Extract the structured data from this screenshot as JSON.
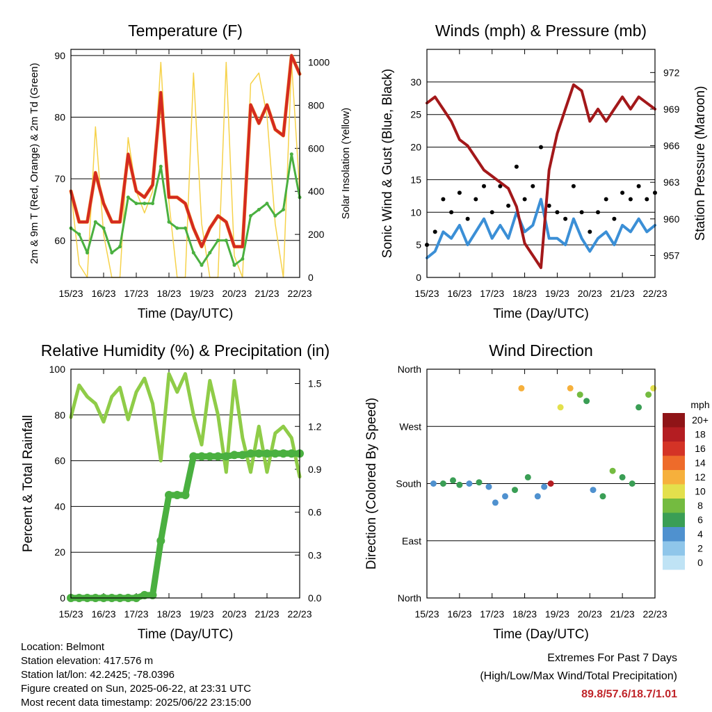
{
  "colors": {
    "temp": "#d42a20",
    "temp9": "#f39a2d",
    "dew": "#4ab040",
    "solar": "#f6d24a",
    "wind": "#3b8fd6",
    "gust": "#000000",
    "pressure": "#a3181a",
    "rh": "#8fcc48",
    "precip": "#4ab040",
    "extremes": "#c0252a"
  },
  "time_ticks": [
    "15/23",
    "16/23",
    "17/23",
    "18/23",
    "19/23",
    "20/23",
    "21/23",
    "22/23"
  ],
  "chart_data": [
    {
      "type": "line",
      "title": "Temperature (F)",
      "xlabel": "Time (Day/UTC)",
      "ylabel": "2m & 9m T (Red, Orange) & 2m Td (Green)",
      "y2label": "Solar Insolation (Yellow)",
      "ylim": [
        54,
        91
      ],
      "yticks": [
        60,
        70,
        80,
        90
      ],
      "y2lim": [
        0,
        1060
      ],
      "y2ticks": [
        0,
        200,
        400,
        600,
        800,
        1000
      ],
      "x": [
        0,
        0.25,
        0.5,
        0.75,
        1,
        1.25,
        1.5,
        1.75,
        2,
        2.25,
        2.5,
        2.75,
        3,
        3.25,
        3.5,
        3.75,
        4,
        4.25,
        4.5,
        4.75,
        5,
        5.25,
        5.5,
        5.75,
        6,
        6.25,
        6.5,
        6.75,
        7
      ],
      "series": [
        {
          "name": "2m T",
          "axis": "left",
          "values": [
            68,
            63,
            63,
            71,
            66,
            63,
            63,
            74,
            68,
            67,
            69,
            84,
            67,
            67,
            66,
            62,
            59,
            62,
            64,
            63,
            59,
            59,
            82,
            79,
            82,
            78,
            77,
            90,
            87
          ]
        },
        {
          "name": "2m Td",
          "axis": "left",
          "values": [
            62,
            61,
            58,
            63,
            62,
            58,
            59,
            67,
            66,
            66,
            66,
            72,
            63,
            62,
            62,
            58,
            56,
            58,
            60,
            60,
            56,
            57,
            64,
            65,
            66,
            64,
            65,
            74,
            67
          ]
        },
        {
          "name": "Solar",
          "axis": "right",
          "values": [
            400,
            60,
            0,
            700,
            200,
            0,
            0,
            650,
            400,
            300,
            400,
            1000,
            350,
            0,
            0,
            950,
            250,
            0,
            0,
            1000,
            100,
            0,
            900,
            950,
            750,
            250,
            0,
            1000,
            400
          ]
        }
      ]
    },
    {
      "type": "scatter",
      "title": "Winds (mph) & Pressure (mb)",
      "xlabel": "Time (Day/UTC)",
      "ylabel": "Sonic Wind & Gust (Blue, Black)",
      "y2label": "Station Pressure (Maroon)",
      "ylim": [
        0,
        35
      ],
      "yticks": [
        0,
        5,
        10,
        15,
        20,
        25,
        30
      ],
      "y2lim": [
        955.2,
        973.9
      ],
      "y2ticks": [
        957,
        960,
        963,
        966,
        969,
        972
      ],
      "x": [
        0,
        0.25,
        0.5,
        0.75,
        1,
        1.25,
        1.5,
        1.75,
        2,
        2.25,
        2.5,
        2.75,
        3,
        3.25,
        3.5,
        3.75,
        4,
        4.25,
        4.5,
        4.75,
        5,
        5.25,
        5.5,
        5.75,
        6,
        6.25,
        6.5,
        6.75,
        7
      ],
      "series": [
        {
          "name": "Wind",
          "axis": "left",
          "values": [
            3,
            4,
            7,
            6,
            8,
            5,
            7,
            9,
            6,
            8,
            6,
            10,
            7,
            8,
            12,
            6,
            6,
            5,
            9,
            6,
            4,
            6,
            7,
            5,
            8,
            7,
            9,
            7,
            8
          ]
        },
        {
          "name": "Gust",
          "axis": "left",
          "values": [
            5,
            7,
            12,
            10,
            13,
            9,
            12,
            14,
            10,
            14,
            11,
            17,
            12,
            14,
            20,
            11,
            10,
            9,
            14,
            10,
            7,
            10,
            12,
            9,
            13,
            12,
            14,
            12,
            13
          ]
        },
        {
          "name": "Pressure",
          "axis": "right",
          "values": [
            969.5,
            970,
            969,
            968,
            966.5,
            966,
            965,
            964,
            963.5,
            963,
            962.5,
            961,
            958,
            957,
            956,
            964,
            967,
            969,
            971,
            970.5,
            968,
            969,
            968,
            969,
            970,
            969,
            970,
            969.5,
            969
          ]
        }
      ]
    },
    {
      "type": "line",
      "title": "Relative Humidity (%) & Precipitation (in)",
      "xlabel": "Time (Day/UTC)",
      "ylabel": "Percent & Total Rainfall",
      "ylim": [
        0,
        100
      ],
      "yticks": [
        0,
        20,
        40,
        60,
        80,
        100
      ],
      "y2lim": [
        0,
        1.6
      ],
      "y2ticks": [
        "0.0",
        "0.3",
        "0.6",
        "0.9",
        "1.2",
        "1.5"
      ],
      "x": [
        0,
        0.25,
        0.5,
        0.75,
        1,
        1.25,
        1.5,
        1.75,
        2,
        2.25,
        2.5,
        2.75,
        3,
        3.25,
        3.5,
        3.75,
        4,
        4.25,
        4.5,
        4.75,
        5,
        5.25,
        5.5,
        5.75,
        6,
        6.25,
        6.5,
        6.75,
        7
      ],
      "series": [
        {
          "name": "RH",
          "axis": "left",
          "values": [
            79,
            93,
            88,
            85,
            77,
            88,
            92,
            78,
            90,
            96,
            85,
            60,
            98,
            90,
            98,
            80,
            67,
            95,
            80,
            55,
            95,
            70,
            55,
            75,
            55,
            72,
            75,
            70,
            53
          ]
        },
        {
          "name": "Precip",
          "axis": "right",
          "values": [
            0,
            0,
            0,
            0,
            0,
            0,
            0,
            0,
            0,
            0.02,
            0.02,
            0.4,
            0.72,
            0.72,
            0.72,
            0.99,
            0.99,
            0.99,
            0.99,
            0.99,
            1.0,
            1.0,
            1.01,
            1.01,
            1.01,
            1.01,
            1.01,
            1.01,
            1.01
          ]
        }
      ]
    },
    {
      "type": "scatter",
      "title": "Wind Direction",
      "xlabel": "Time (Day/UTC)",
      "ylabel": "Direction (Colored By Speed)",
      "ylim": [
        0,
        360
      ],
      "yticks": [
        "North",
        "East",
        "South",
        "West",
        "North"
      ],
      "legend": {
        "title": "mph",
        "labels": [
          "0",
          "2",
          "4",
          "6",
          "8",
          "10",
          "12",
          "14",
          "16",
          "18",
          "20+"
        ],
        "colors": [
          "#bfe3f5",
          "#8fc6ea",
          "#4f91cf",
          "#3a9e55",
          "#74bb40",
          "#e3e04c",
          "#f6b03c",
          "#ee6b2a",
          "#d43326",
          "#b41d22",
          "#8f1417"
        ]
      },
      "x": [
        0.2,
        0.5,
        0.8,
        1.0,
        1.3,
        1.6,
        1.9,
        2.1,
        2.4,
        2.7,
        2.9,
        3.1,
        3.4,
        3.6,
        3.8,
        4.1,
        4.4,
        4.7,
        4.9,
        5.1,
        5.4,
        5.7,
        6.0,
        6.3,
        6.5,
        6.8,
        6.95
      ],
      "values": [
        180,
        180,
        185,
        178,
        180,
        182,
        175,
        150,
        160,
        170,
        330,
        190,
        160,
        175,
        180,
        300,
        330,
        320,
        310,
        170,
        160,
        200,
        190,
        180,
        300,
        320,
        330
      ],
      "speeds": [
        3,
        5,
        6,
        5,
        4,
        5,
        4,
        3,
        4,
        6,
        12,
        5,
        4,
        3,
        17,
        9,
        11,
        7,
        6,
        4,
        5,
        8,
        5,
        6,
        6,
        7,
        9
      ]
    }
  ],
  "footer": {
    "location": "Location: Belmont",
    "elevation": "Station elevation: 417.576 m",
    "latlon": "Station lat/lon: 42.2425; -78.0396",
    "created": "Figure created on Sun, 2025-06-22, at 23:31 UTC",
    "recent": "Most recent data timestamp: 2025/06/22 23:15:00"
  },
  "extremes": {
    "title": "Extremes For Past 7 Days",
    "subtitle": "(High/Low/Max Wind/Total Precipitation)",
    "values": "89.8/57.6/18.7/1.01"
  }
}
